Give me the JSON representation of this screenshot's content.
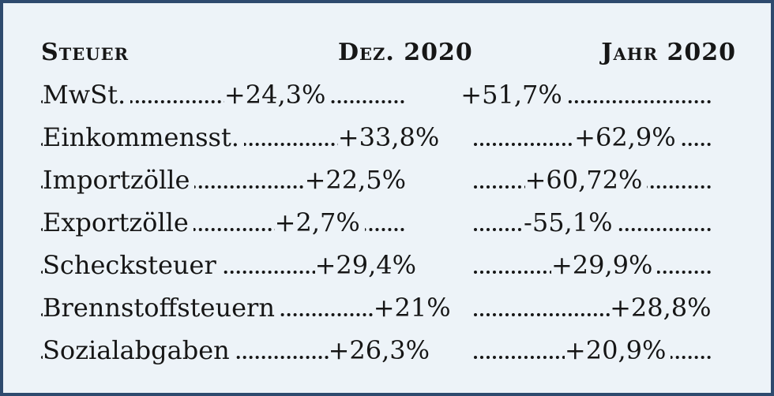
{
  "table": {
    "headers": [
      "Steuer",
      "Dez. 2020",
      "Jahr 2020"
    ],
    "rows": [
      {
        "label": "MwSt.",
        "dec": "+51,7%",
        "year": "+24,3%"
      },
      {
        "label": "Einkommensst.",
        "dec": "+62,9%",
        "year": "+33,8%"
      },
      {
        "label": "Importzölle",
        "dec": "+60,72%",
        "year": "+22,5%"
      },
      {
        "label": "Exportzölle",
        "dec": "-55,1%",
        "year": "+2,7%"
      },
      {
        "label": "Schecksteuer",
        "dec": "+29,9%",
        "year": "+29,4%"
      },
      {
        "label": "Brennstoffsteuern",
        "dec": "+28,8%",
        "year": "+21%"
      },
      {
        "label": "Sozialabgaben",
        "dec": "+20,9%",
        "year": "+26,3%"
      }
    ]
  }
}
